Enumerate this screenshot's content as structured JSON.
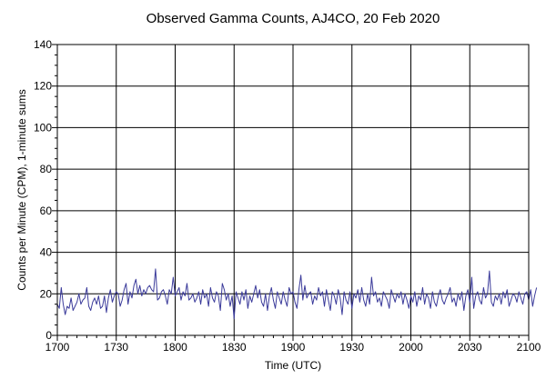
{
  "chart_data": {
    "type": "line",
    "title": "Observed Gamma Counts, AJ4CO, 20 Feb 2020",
    "xlabel": "Time (UTC)",
    "ylabel": "Counts per Minute (CPM), 1-minute sums",
    "xlim": [
      0,
      240
    ],
    "ylim": [
      0,
      140
    ],
    "x_ticks": [
      {
        "value": 0,
        "label": "1700"
      },
      {
        "value": 30,
        "label": "1730"
      },
      {
        "value": 60,
        "label": "1800"
      },
      {
        "value": 90,
        "label": "1830"
      },
      {
        "value": 120,
        "label": "1900"
      },
      {
        "value": 150,
        "label": "1930"
      },
      {
        "value": 180,
        "label": "2000"
      },
      {
        "value": 210,
        "label": "2030"
      },
      {
        "value": 240,
        "label": "2100"
      }
    ],
    "y_ticks": [
      {
        "value": 0,
        "label": "0"
      },
      {
        "value": 20,
        "label": "20"
      },
      {
        "value": 40,
        "label": "40"
      },
      {
        "value": 60,
        "label": "60"
      },
      {
        "value": 80,
        "label": "80"
      },
      {
        "value": 100,
        "label": "100"
      },
      {
        "value": 120,
        "label": "120"
      },
      {
        "value": 140,
        "label": "140"
      }
    ],
    "grid": true,
    "line_color": "#3a3a9a",
    "series": [
      {
        "values": [
          15,
          13,
          23,
          15,
          10,
          14,
          13,
          18,
          12,
          14,
          16,
          20,
          15,
          17,
          18,
          23,
          14,
          12,
          16,
          18,
          15,
          19,
          13,
          14,
          19,
          11,
          18,
          22,
          16,
          19,
          21,
          20,
          14,
          17,
          22,
          25,
          15,
          21,
          18,
          24,
          27,
          20,
          24,
          19,
          22,
          20,
          23,
          24,
          22,
          21,
          32,
          17,
          18,
          21,
          22,
          19,
          15,
          22,
          20,
          28,
          19,
          21,
          23,
          17,
          21,
          19,
          25,
          17,
          18,
          20,
          16,
          18,
          21,
          15,
          22,
          18,
          20,
          14,
          23,
          18,
          16,
          21,
          19,
          12,
          25,
          22,
          17,
          20,
          14,
          19,
          8,
          21,
          18,
          15,
          21,
          17,
          22,
          13,
          19,
          16,
          20,
          24,
          18,
          22,
          16,
          14,
          20,
          12,
          19,
          23,
          17,
          13,
          21,
          18,
          15,
          21,
          17,
          14,
          23,
          20,
          21,
          16,
          13,
          22,
          29,
          17,
          24,
          18,
          20,
          21,
          15,
          19,
          17,
          23,
          19,
          21,
          14,
          22,
          17,
          12,
          21,
          19,
          15,
          22,
          18,
          10,
          21,
          17,
          15,
          21,
          13,
          20,
          18,
          22,
          16,
          23,
          17,
          14,
          20,
          15,
          28,
          19,
          21,
          16,
          18,
          14,
          21,
          19,
          17,
          13,
          22,
          19,
          16,
          20,
          18,
          21,
          15,
          20,
          17,
          13,
          19,
          16,
          21,
          14,
          19,
          17,
          23,
          15,
          20,
          18,
          13,
          21,
          16,
          14,
          19,
          22,
          17,
          15,
          18,
          20,
          23,
          16,
          18,
          14,
          20,
          17,
          21,
          12,
          19,
          22,
          16,
          28,
          13,
          19,
          21,
          17,
          15,
          23,
          18,
          20,
          31,
          16,
          14,
          19,
          17,
          20,
          15,
          21,
          18,
          22,
          14,
          17,
          20,
          19,
          16,
          21,
          18,
          15,
          20,
          21,
          17,
          22,
          14,
          19,
          23
        ]
      }
    ]
  }
}
